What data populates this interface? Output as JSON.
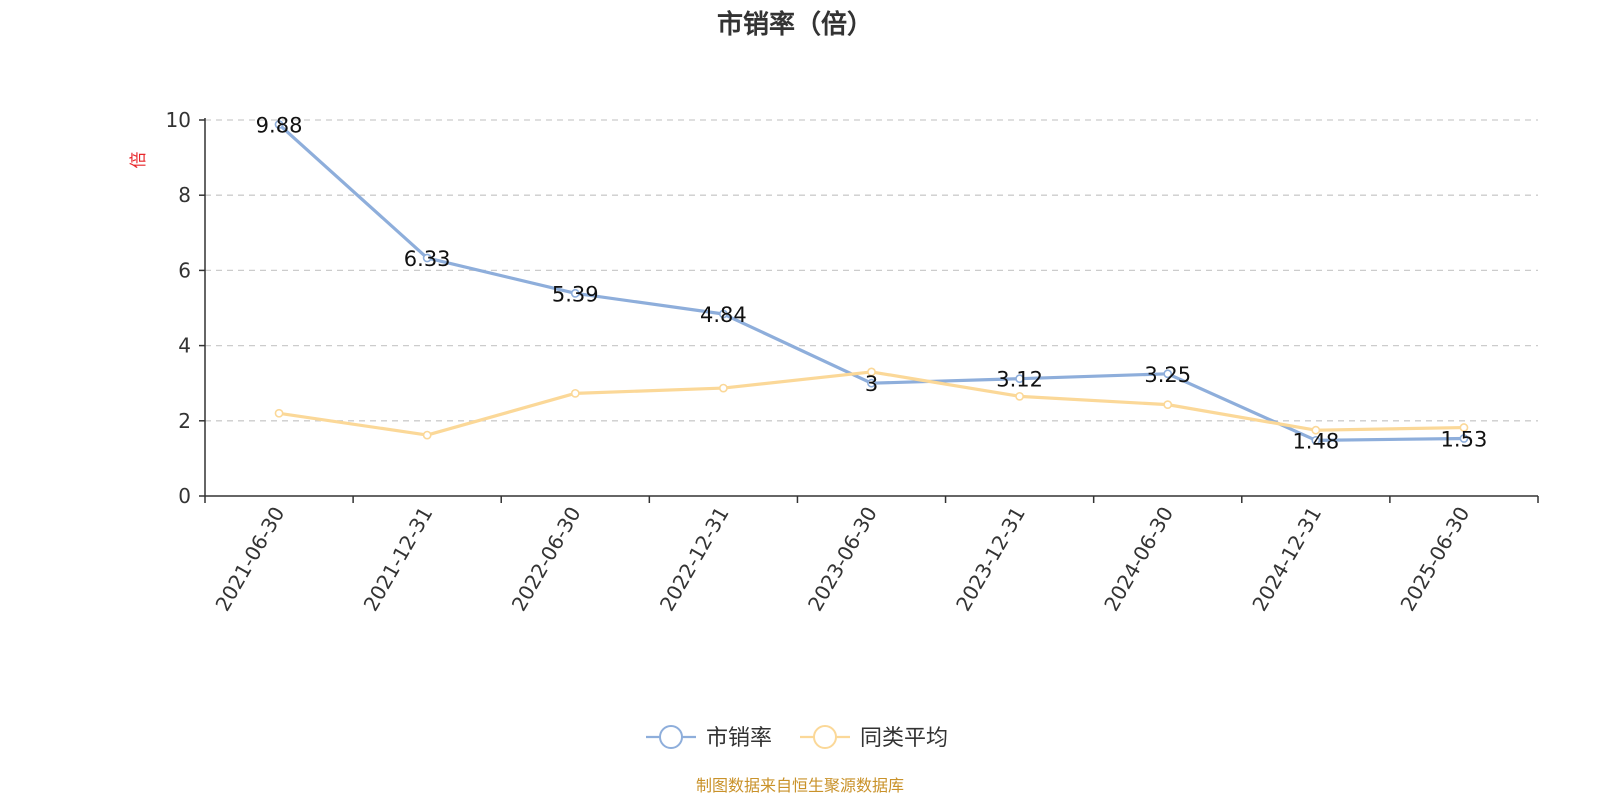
{
  "chart_data": {
    "type": "line",
    "title": "市销率（倍）",
    "ylabel": "倍",
    "ylim": [
      0,
      10
    ],
    "yticks": [
      0,
      2,
      4,
      6,
      8,
      10
    ],
    "categories": [
      "2021-06-30",
      "2021-12-31",
      "2022-06-30",
      "2022-12-31",
      "2023-06-30",
      "2023-12-31",
      "2024-06-30",
      "2024-12-31",
      "2025-06-30"
    ],
    "series": [
      {
        "name": "市销率",
        "values": [
          9.88,
          6.33,
          5.39,
          4.84,
          3,
          3.12,
          3.25,
          1.48,
          1.53
        ],
        "labels": [
          "9.88",
          "6.33",
          "5.39",
          "4.84",
          "3",
          "3.12",
          "3.25",
          "1.48",
          "1.53"
        ],
        "color": "#8eaedb",
        "show_labels": true
      },
      {
        "name": "同类平均",
        "values": [
          2.2,
          1.62,
          2.73,
          2.87,
          3.3,
          2.65,
          2.43,
          1.75,
          1.82
        ],
        "color": "#fbd898",
        "show_labels": false
      }
    ],
    "grid": true,
    "legend_position": "bottom-center",
    "axis_label_color": "#e8262a",
    "source": "制图数据来自恒生聚源数据库",
    "source_color": "#c9922a"
  }
}
